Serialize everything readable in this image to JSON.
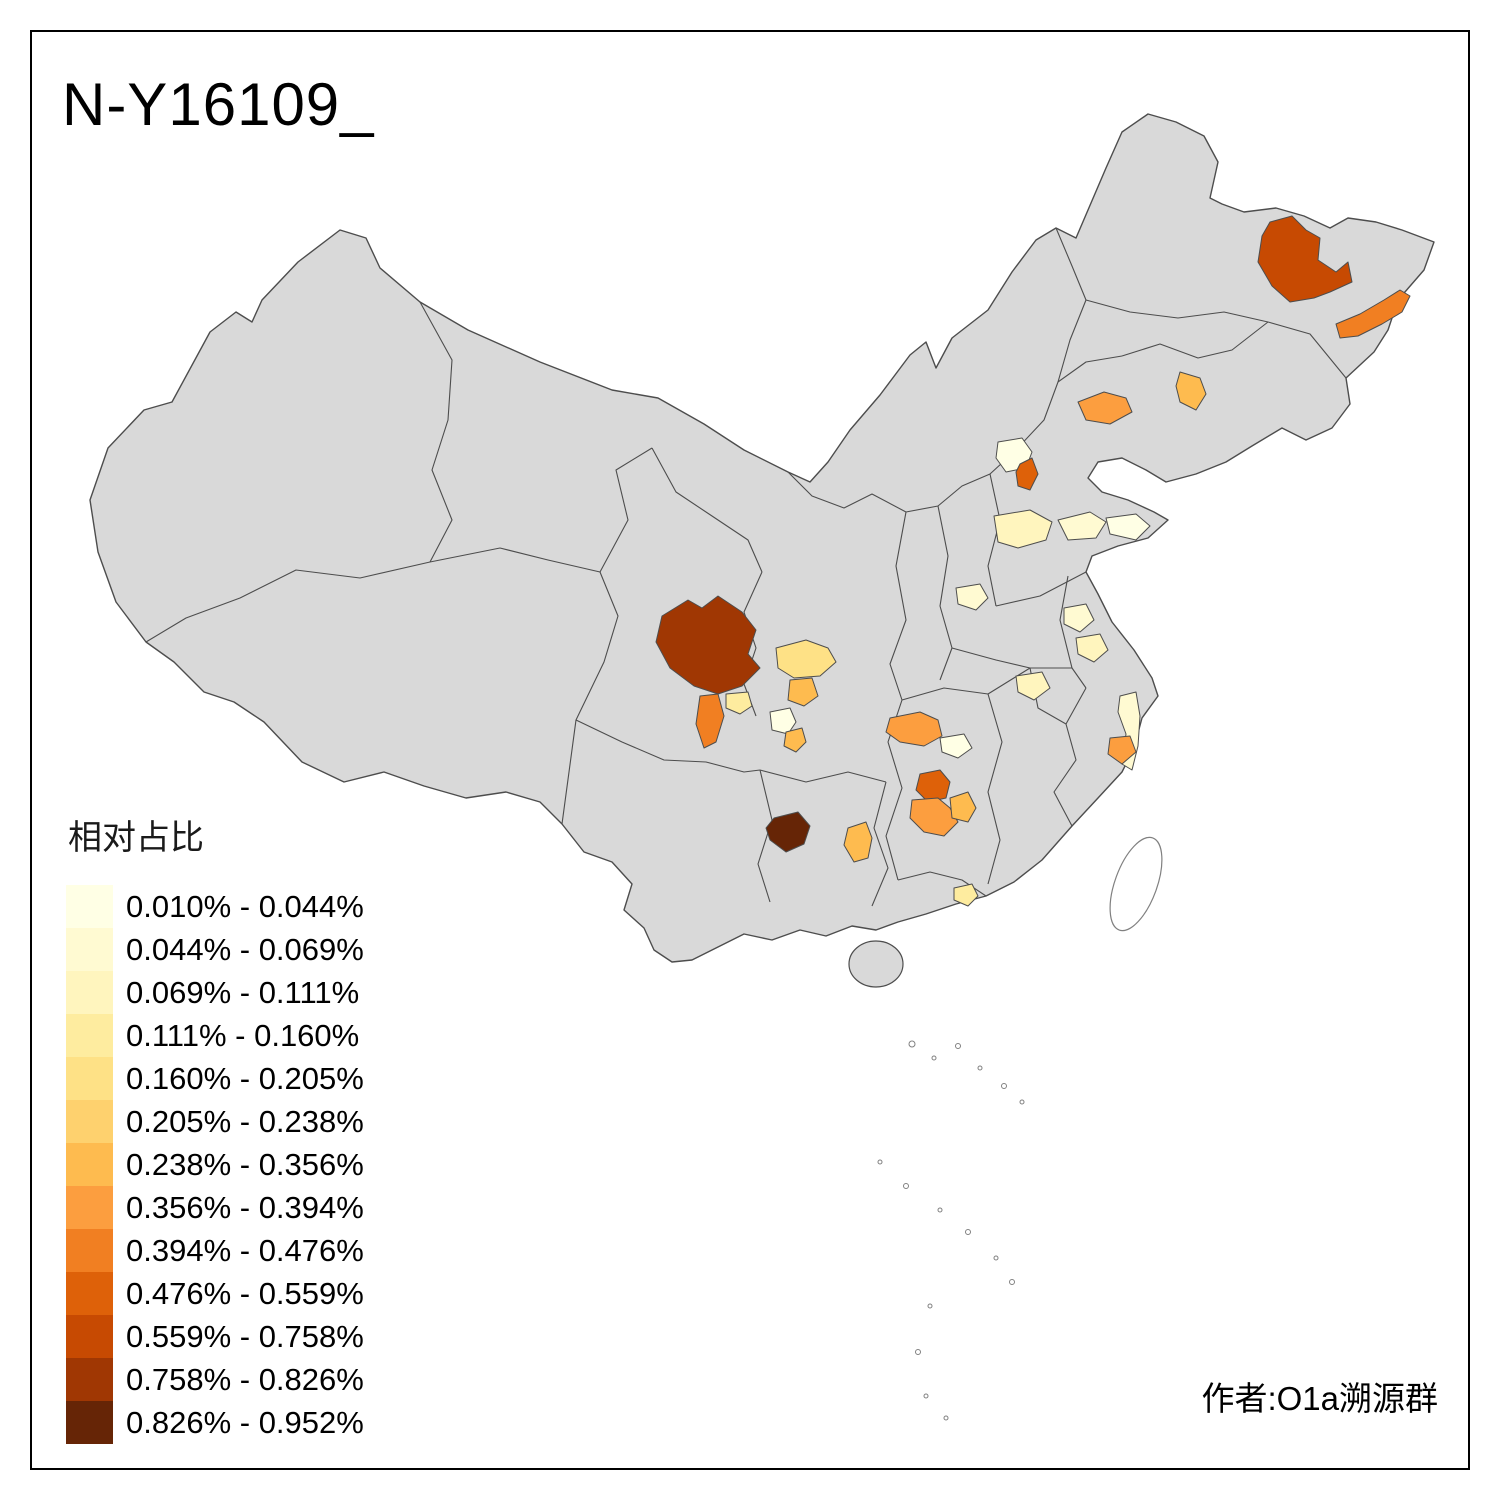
{
  "page": {
    "title": "N-Y16109_",
    "author": "作者:O1a溯源群"
  },
  "legend": {
    "title": "相对占比",
    "items": [
      {
        "range": "0.010% - 0.044%",
        "color": "#FFFFE5"
      },
      {
        "range": "0.044% - 0.069%",
        "color": "#FFFAD2"
      },
      {
        "range": "0.069% - 0.111%",
        "color": "#FFF5BE"
      },
      {
        "range": "0.111% - 0.160%",
        "color": "#FEEC9F"
      },
      {
        "range": "0.160% - 0.205%",
        "color": "#FEE186"
      },
      {
        "range": "0.205% - 0.238%",
        "color": "#FED16E"
      },
      {
        "range": "0.238% - 0.356%",
        "color": "#FEBB4F"
      },
      {
        "range": "0.356% - 0.394%",
        "color": "#FC9E3F"
      },
      {
        "range": "0.394% - 0.476%",
        "color": "#F17F22"
      },
      {
        "range": "0.476% - 0.559%",
        "color": "#DE6109"
      },
      {
        "range": "0.559% - 0.758%",
        "color": "#C74A02"
      },
      {
        "range": "0.758% - 0.826%",
        "color": "#A03703"
      },
      {
        "range": "0.826% - 0.952%",
        "color": "#662506"
      }
    ]
  },
  "map": {
    "land_color": "#D9D9D9",
    "border_color": "#4D4D4D",
    "island_outline_color": "#808080",
    "regions": {
      "r1": {
        "bin": 10
      },
      "r2": {
        "bin": 8
      },
      "r3": {
        "bin": 6
      },
      "r4": {
        "bin": 7
      },
      "r5": {
        "bin": 0
      },
      "r6": {
        "bin": 9
      },
      "r7": {
        "bin": 2
      },
      "r8": {
        "bin": 1
      },
      "r9": {
        "bin": 0
      },
      "r10": {
        "bin": 1
      },
      "r11": {
        "bin": 1
      },
      "r12": {
        "bin": 2
      },
      "r13": {
        "bin": 2
      },
      "r14": {
        "bin": 1
      },
      "r15": {
        "bin": 7
      },
      "r16": {
        "bin": 11
      },
      "r17": {
        "bin": 8
      },
      "r18": {
        "bin": 3
      },
      "r19": {
        "bin": 4
      },
      "r20": {
        "bin": 6
      },
      "r21": {
        "bin": 0
      },
      "r22": {
        "bin": 6
      },
      "r23": {
        "bin": 7
      },
      "r24": {
        "bin": 0
      },
      "r25": {
        "bin": 9
      },
      "r26": {
        "bin": 7
      },
      "r27": {
        "bin": 6
      },
      "r28": {
        "bin": 12
      },
      "r29": {
        "bin": 6
      },
      "r30": {
        "bin": 3
      }
    }
  }
}
